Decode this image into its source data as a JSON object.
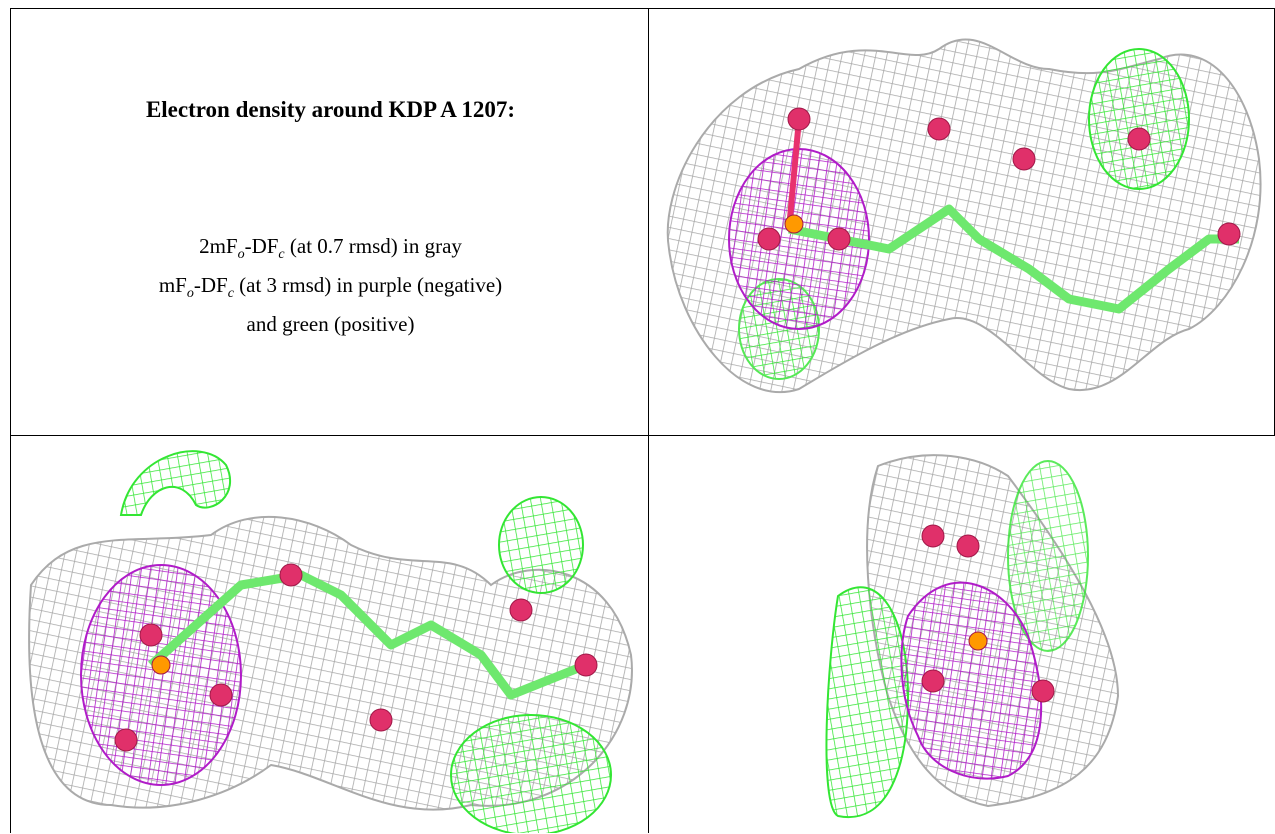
{
  "header": {
    "title": "Electron density around KDP A 1207:"
  },
  "legend": {
    "lines": [
      {
        "parts": [
          {
            "text": "2mF"
          },
          {
            "sub": "o"
          },
          {
            "text": "-DF"
          },
          {
            "sub": "c"
          },
          {
            "text": " (at 0.7 rmsd) in gray"
          }
        ]
      },
      {
        "parts": [
          {
            "text": "mF"
          },
          {
            "sub": "o"
          },
          {
            "text": "-DF"
          },
          {
            "sub": "c"
          },
          {
            "text": " (at 3 rmsd) in purple (negative)"
          }
        ]
      },
      {
        "parts": [
          {
            "text": "and green (positive)"
          }
        ]
      }
    ]
  }
}
